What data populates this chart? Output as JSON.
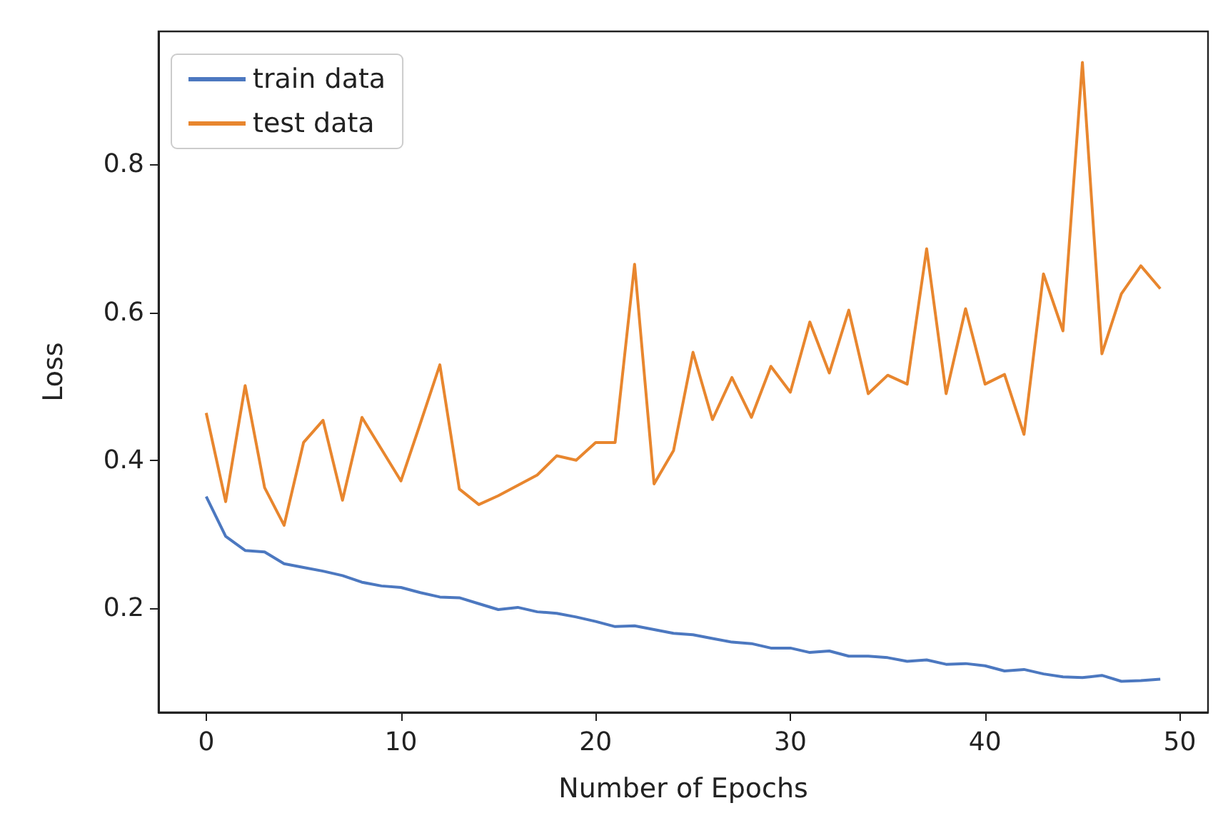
{
  "chart_data": {
    "type": "line",
    "xlabel": "Number of Epochs",
    "ylabel": "Loss",
    "x": [
      0,
      1,
      2,
      3,
      4,
      5,
      6,
      7,
      8,
      9,
      10,
      11,
      12,
      13,
      14,
      15,
      16,
      17,
      18,
      19,
      20,
      21,
      22,
      23,
      24,
      25,
      26,
      27,
      28,
      29,
      30,
      31,
      32,
      33,
      34,
      35,
      36,
      37,
      38,
      39,
      40,
      41,
      42,
      43,
      44,
      45,
      46,
      47,
      48,
      49
    ],
    "series": [
      {
        "name": "train data",
        "color": "#4c78c0",
        "values": [
          0.351,
          0.297,
          0.278,
          0.276,
          0.26,
          0.255,
          0.25,
          0.244,
          0.235,
          0.23,
          0.228,
          0.221,
          0.215,
          0.214,
          0.206,
          0.198,
          0.201,
          0.195,
          0.193,
          0.188,
          0.182,
          0.175,
          0.176,
          0.171,
          0.166,
          0.164,
          0.159,
          0.154,
          0.152,
          0.146,
          0.146,
          0.14,
          0.142,
          0.135,
          0.135,
          0.133,
          0.128,
          0.13,
          0.124,
          0.125,
          0.122,
          0.115,
          0.117,
          0.111,
          0.107,
          0.106,
          0.109,
          0.101,
          0.102,
          0.104
        ]
      },
      {
        "name": "test data",
        "color": "#e8862e",
        "values": [
          0.464,
          0.344,
          0.501,
          0.363,
          0.312,
          0.424,
          0.454,
          0.346,
          0.458,
          0.415,
          0.372,
          0.45,
          0.529,
          0.361,
          0.34,
          0.352,
          0.366,
          0.38,
          0.406,
          0.4,
          0.424,
          0.424,
          0.665,
          0.368,
          0.413,
          0.546,
          0.455,
          0.512,
          0.458,
          0.527,
          0.492,
          0.587,
          0.518,
          0.603,
          0.49,
          0.515,
          0.503,
          0.686,
          0.49,
          0.605,
          0.503,
          0.516,
          0.435,
          0.652,
          0.575,
          0.938,
          0.544,
          0.625,
          0.663,
          0.632
        ]
      }
    ],
    "xlim": [
      -2.45,
      51.45
    ],
    "ylim": [
      0.059,
      0.98
    ],
    "xticks": [
      0,
      10,
      20,
      30,
      40,
      50
    ],
    "yticks": [
      0.2,
      0.4,
      0.6,
      0.8
    ],
    "grid": false,
    "legend": "top left",
    "marker": "none",
    "line_style": "solid"
  }
}
